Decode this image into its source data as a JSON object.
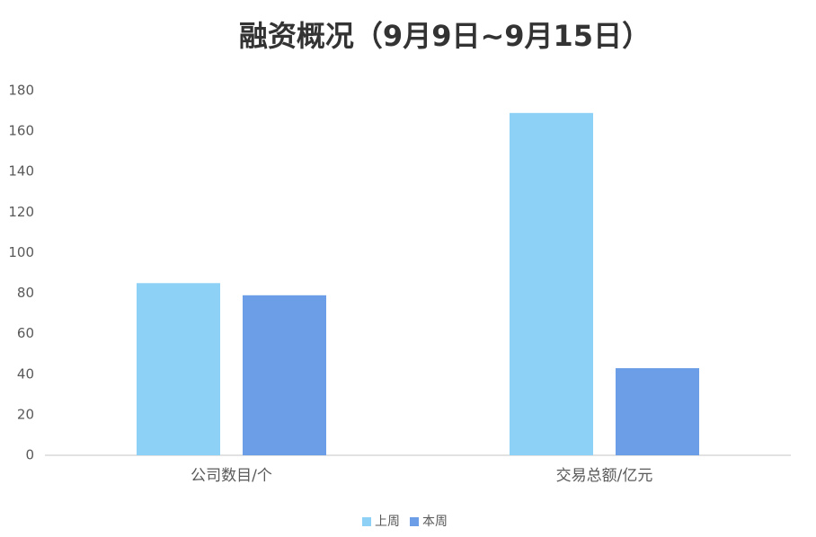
{
  "chart_data": {
    "type": "bar",
    "title": "融资概况（9月9日~9月15日）",
    "categories": [
      "公司数目/个",
      "交易总额/亿元"
    ],
    "series": [
      {
        "name": "上周",
        "color": "#8dd2f6",
        "values": [
          85,
          169
        ]
      },
      {
        "name": "本周",
        "color": "#6b9ee6",
        "values": [
          79,
          43
        ]
      }
    ],
    "ylim": [
      0,
      180
    ],
    "yticks": [
      0,
      20,
      40,
      60,
      80,
      100,
      120,
      140,
      160,
      180
    ],
    "grid": false,
    "legend": "bottom"
  }
}
